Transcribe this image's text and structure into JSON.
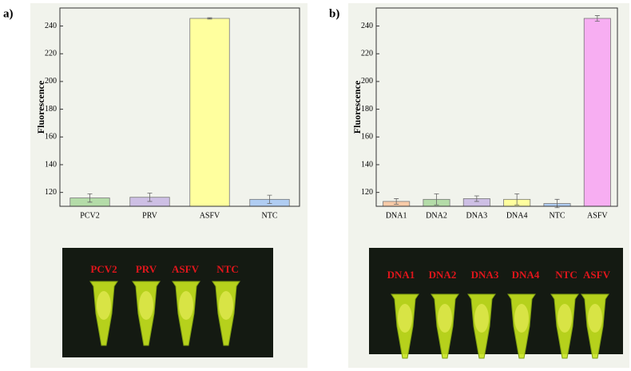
{
  "chart_data": [
    {
      "type": "bar",
      "panel_label": "a)",
      "ylabel": "Fluorescence",
      "categories": [
        "PCV2",
        "PRV",
        "ASFV",
        "NTC"
      ],
      "values": [
        116,
        116.5,
        245.5,
        115
      ],
      "errors": [
        3,
        3,
        0.5,
        3
      ],
      "colors": [
        "#b4dca8",
        "#cdbfe4",
        "#ffff9e",
        "#b0cdf2"
      ],
      "ylim": [
        110,
        253
      ],
      "yticks": [
        120,
        140,
        160,
        180,
        200,
        220,
        240
      ],
      "photo_labels": [
        "PCV2",
        "PRV",
        "ASFV",
        "NTC"
      ]
    },
    {
      "type": "bar",
      "panel_label": "b)",
      "ylabel": "Fluorescence",
      "categories": [
        "DNA1",
        "DNA2",
        "DNA3",
        "DNA4",
        "NTC",
        "ASFV"
      ],
      "values": [
        113.5,
        115,
        115.5,
        115,
        112,
        245.5
      ],
      "errors": [
        2,
        4,
        2,
        4,
        3,
        2
      ],
      "colors": [
        "#f9cba8",
        "#b4dca8",
        "#cdbfe4",
        "#ffff9e",
        "#b0cdf2",
        "#f7aef2"
      ],
      "ylim": [
        110,
        253
      ],
      "yticks": [
        120,
        140,
        160,
        180,
        200,
        220,
        240
      ],
      "photo_labels": [
        "DNA1",
        "DNA2",
        "DNA3",
        "DNA4",
        "NTC",
        "ASFV"
      ]
    }
  ]
}
